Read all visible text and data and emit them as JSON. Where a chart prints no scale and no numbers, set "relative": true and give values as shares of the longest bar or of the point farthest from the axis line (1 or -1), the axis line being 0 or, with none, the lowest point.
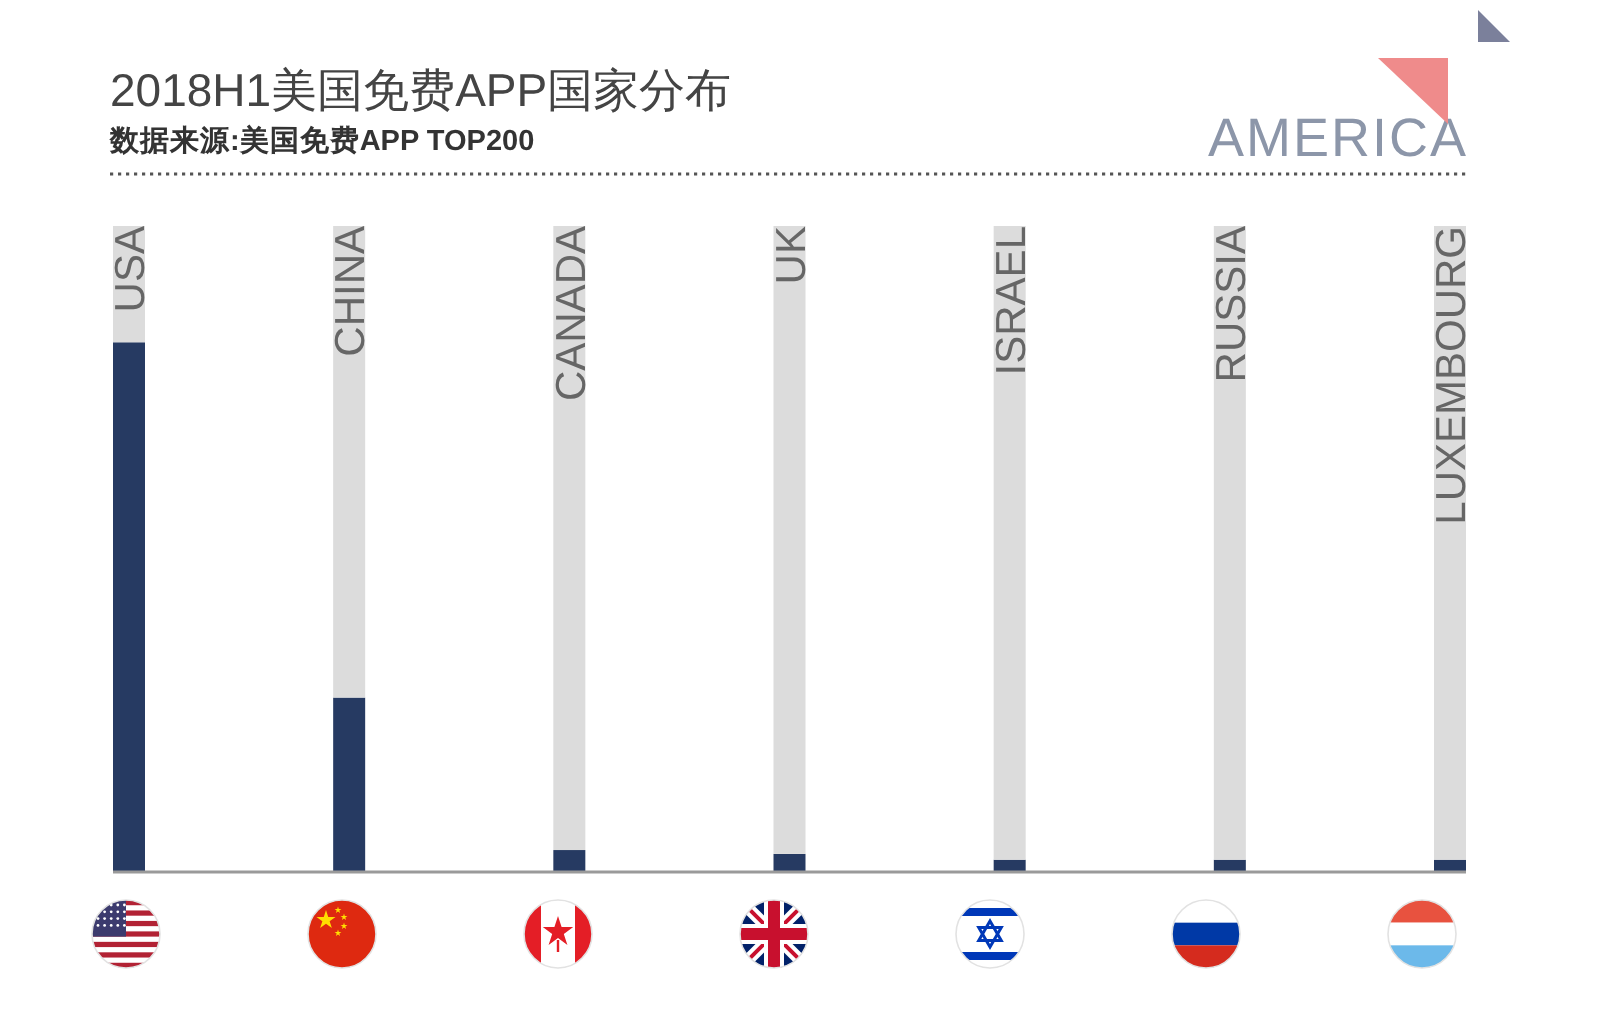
{
  "chart_data": {
    "type": "bar",
    "title": "2018H1美国免费APP国家分布",
    "annotations": [
      "数据来源:美国免费APP TOP200",
      "AMERICA"
    ],
    "categories": [
      "USA",
      "CHINA",
      "CANADA",
      "UK",
      "ISRAEL",
      "RUSSIA",
      "LUXEMBOURG"
    ],
    "relative": true,
    "stacked": true,
    "series": [
      {
        "color": "#263a62",
        "values": [
          0.82,
          0.27,
          0.034,
          0.028,
          0.019,
          0.019,
          0.019
        ]
      },
      {
        "color": "#dcdcdc",
        "values": [
          0.18,
          0.73,
          0.966,
          0.972,
          0.981,
          0.981,
          0.981
        ]
      }
    ]
  }
}
